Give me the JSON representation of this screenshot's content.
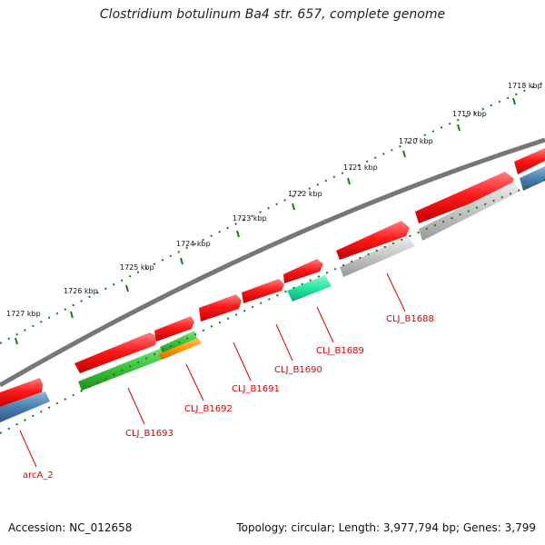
{
  "title": "Clostridium botulinum Ba4 str. 657, complete genome",
  "footer": {
    "accession": "Accession: NC_012658",
    "topology": "Topology: circular; Length: 3,977,794 bp; Genes: 3,799"
  },
  "scale_labels": [
    "1718 kbp",
    "1719 kbp",
    "1720 kbp",
    "1721 kbp",
    "1722 kbp",
    "1723 kbp",
    "1724 kbp",
    "1725 kbp",
    "1726 kbp",
    "1727 kbp"
  ],
  "gene_labels": [
    "CLJ_B1688",
    "CLJ_B1689",
    "CLJ_B1690",
    "CLJ_B1691",
    "CLJ_B1692",
    "CLJ_B1693",
    "arcA_2"
  ],
  "colors": {
    "cds_forward": "#ff1a1a",
    "backbone": "#777777",
    "scale": "#1a7a1a",
    "gray_cds": "#c8c8c8",
    "teal_cds": "#22e8a0",
    "green_cds": "#3cc43c",
    "orange_cds": "#ff9900",
    "blue_cds": "#4a7fb0",
    "label": "#e00000"
  }
}
